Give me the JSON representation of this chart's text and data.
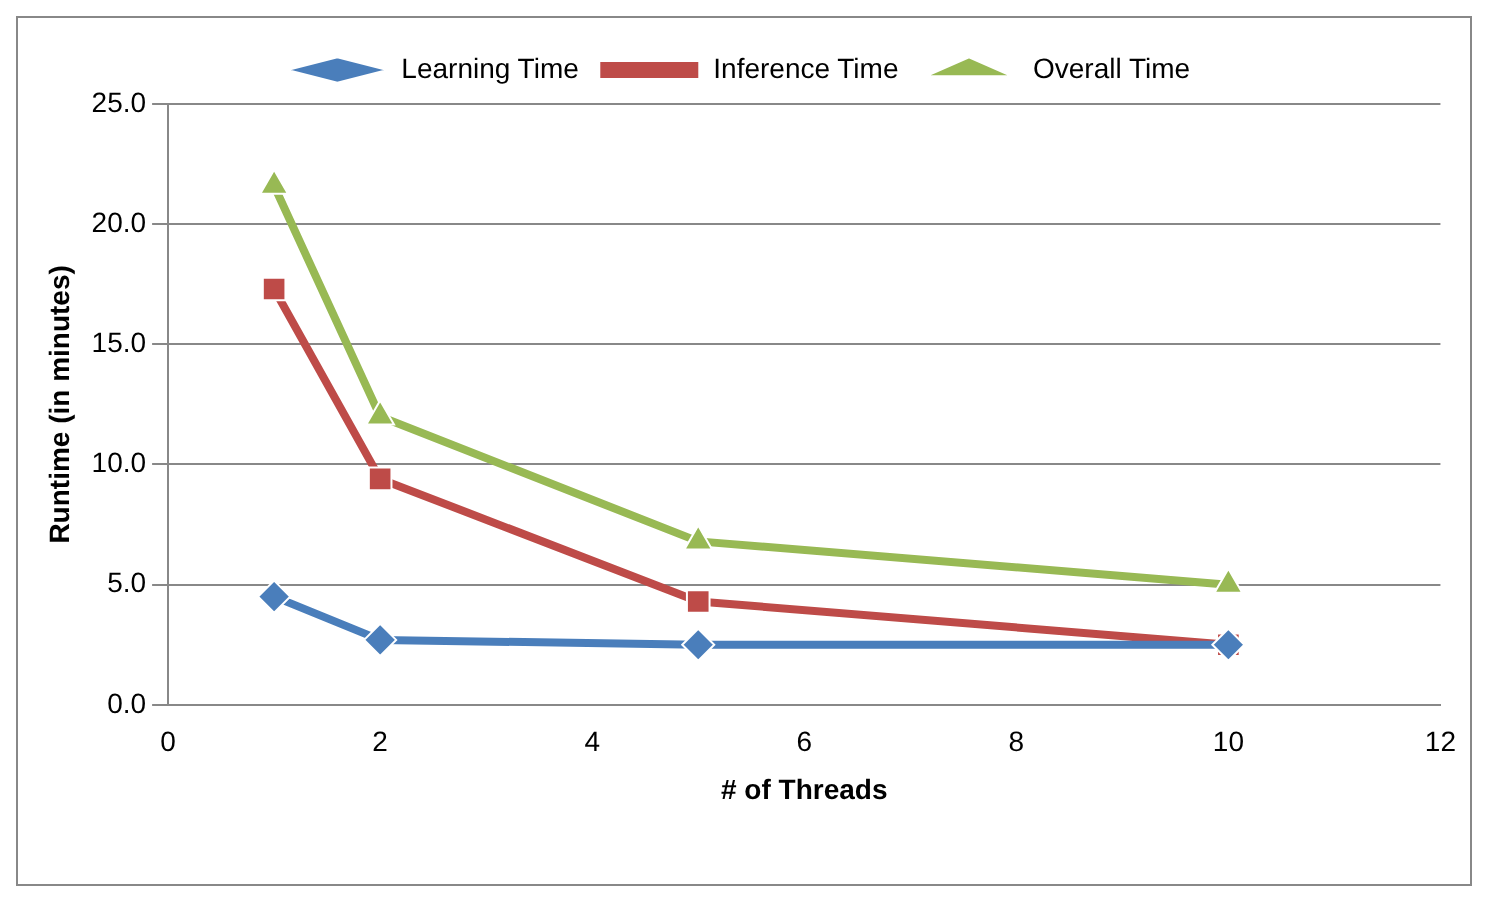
{
  "chart_data": {
    "type": "line",
    "xlabel": "# of Threads",
    "ylabel": "Runtime (in minutes)",
    "x": [
      1,
      2,
      5,
      10
    ],
    "series": [
      {
        "name": "Learning Time",
        "color": "#4a7ebb",
        "marker": "diamond",
        "values": [
          4.5,
          2.7,
          2.5,
          2.5
        ]
      },
      {
        "name": "Inference Time",
        "color": "#be4b48",
        "marker": "square",
        "values": [
          17.3,
          9.4,
          4.3,
          2.5
        ]
      },
      {
        "name": "Overall Time",
        "color": "#98b954",
        "marker": "triangle",
        "values": [
          21.6,
          12.0,
          6.8,
          5.0
        ]
      }
    ],
    "xlim": [
      0,
      12
    ],
    "xticks": [
      0,
      2,
      4,
      6,
      8,
      10,
      12
    ],
    "ylim": [
      0,
      25
    ],
    "yticks": [
      {
        "value": 0,
        "label": "0.0"
      },
      {
        "value": 5,
        "label": "5.0"
      },
      {
        "value": 10,
        "label": "10.0"
      },
      {
        "value": 15,
        "label": "15.0"
      },
      {
        "value": 20,
        "label": "20.0"
      },
      {
        "value": 25,
        "label": "25.0"
      }
    ],
    "grid": "y",
    "legend": "top"
  }
}
